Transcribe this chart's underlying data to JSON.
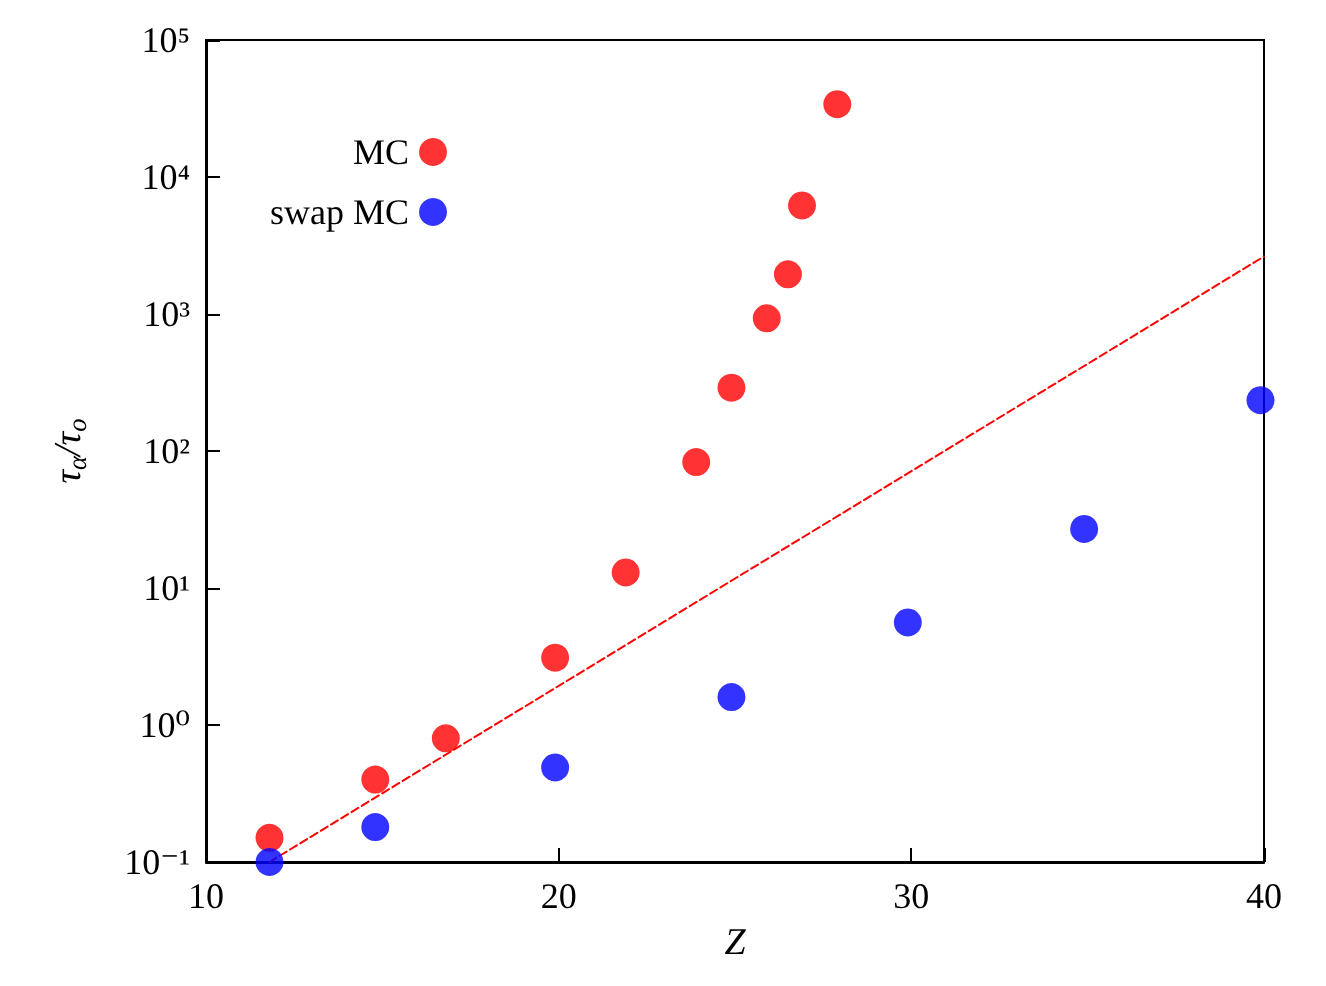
{
  "chart_data": {
    "type": "scatter",
    "xlabel": "Z",
    "ylabel": "τ$_{α}$/τ$_{o}$",
    "xlim": [
      10,
      40
    ],
    "xticks": [
      10,
      20,
      30,
      40
    ],
    "ylim": [
      0.1,
      100000
    ],
    "yticks": [
      {
        "value": 0.1,
        "label": "10⁻¹"
      },
      {
        "value": 1,
        "label": "10⁰"
      },
      {
        "value": 10,
        "label": "10¹"
      },
      {
        "value": 100,
        "label": "10²"
      },
      {
        "value": 1000,
        "label": "10³"
      },
      {
        "value": 10000,
        "label": "10⁴"
      },
      {
        "value": 100000,
        "label": "10⁵"
      }
    ],
    "log": "y",
    "grid": false,
    "legend": "top left",
    "marker": "circle",
    "series": [
      {
        "name": "MC",
        "color": "#ff0000",
        "x": [
          11.8,
          14.8,
          16.8,
          19.9,
          21.9,
          23.9,
          24.9,
          25.9,
          26.5,
          26.9,
          27.9
        ],
        "values": [
          0.15,
          0.4,
          0.8,
          3.1,
          13,
          83,
          290,
          930,
          1950,
          6200,
          34000
        ]
      },
      {
        "name": "swap MC",
        "color": "#0000ff",
        "x": [
          11.8,
          14.8,
          19.9,
          24.9,
          29.9,
          34.9,
          39.9
        ],
        "values": [
          0.1,
          0.18,
          0.49,
          1.6,
          5.6,
          27,
          235
        ]
      },
      {
        "type": "line",
        "color": "#ff0000",
        "line_style": "dashed",
        "marker": "none",
        "x": [
          11.8,
          40
        ],
        "values": [
          0.1,
          2630
        ]
      }
    ]
  }
}
